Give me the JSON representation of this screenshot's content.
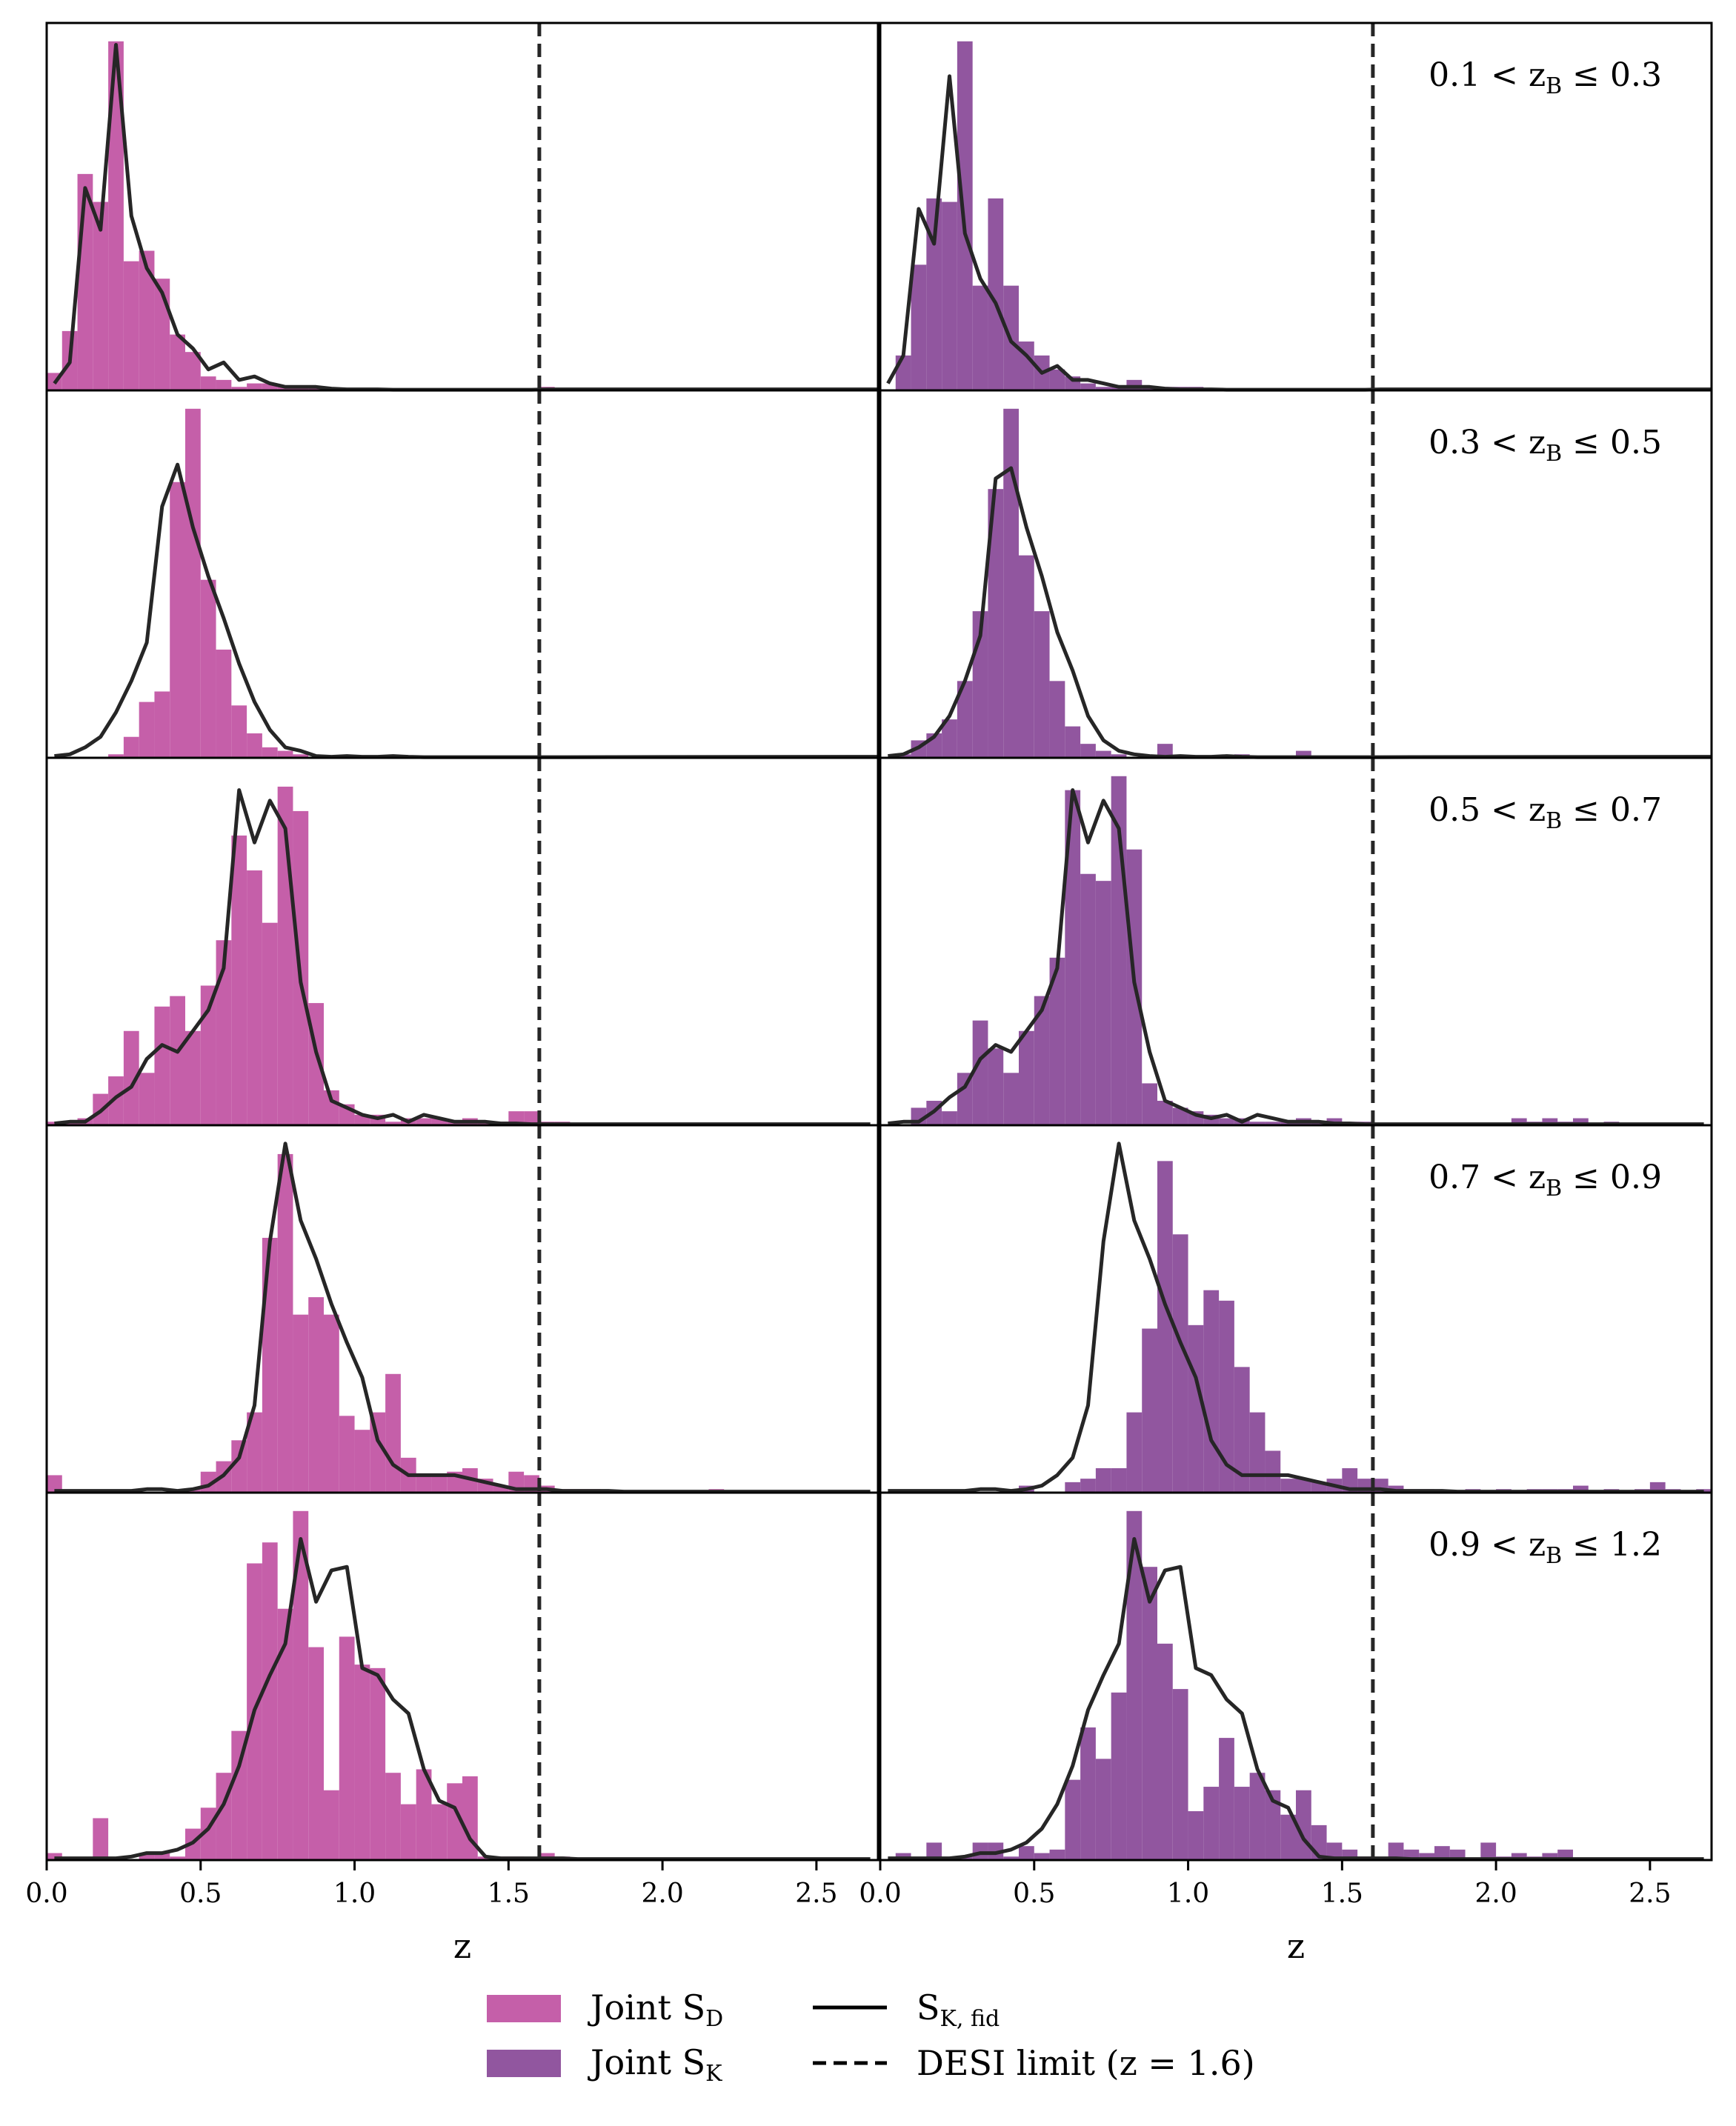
{
  "colors": {
    "joint_sd": "#c55fa9",
    "joint_sk": "#91569f",
    "line": "#262626",
    "desi": "#262626"
  },
  "legend": {
    "joint_sd": "Joint S",
    "joint_sd_sub": "D",
    "joint_sk": "Joint S",
    "joint_sk_sub": "K",
    "sk_fid": "S",
    "sk_fid_sub": "K, fid",
    "desi": "DESI limit (z = 1.6)"
  },
  "chart_data": {
    "type": "histogram",
    "xlabel": "z",
    "xlim": [
      0,
      2.7
    ],
    "xticks": [
      0.0,
      0.5,
      1.0,
      1.5,
      2.0,
      2.5
    ],
    "xtick_labels": [
      "0.0",
      "0.5",
      "1.0",
      "1.5",
      "2.0",
      "2.5"
    ],
    "bin_width": 0.05,
    "desi_limit": 1.6,
    "columns": [
      "Joint S_D",
      "Joint S_K"
    ],
    "rows": [
      {
        "label_a": "0.1 < z",
        "label_sub": "B",
        "label_b": " ≤ 0.3",
        "sd": [
          0.05,
          0.17,
          0.62,
          0.54,
          1.0,
          0.37,
          0.4,
          0.32,
          0.16,
          0.11,
          0.04,
          0.03,
          0.01,
          0.02,
          0.02,
          0.01,
          0.01,
          0.01,
          0,
          0,
          0,
          0,
          0,
          0,
          0,
          0,
          0,
          0,
          0,
          0,
          0,
          0,
          0.01
        ],
        "sk": [
          0.0,
          0.1,
          0.36,
          0.55,
          0.54,
          1.0,
          0.3,
          0.55,
          0.3,
          0.14,
          0.1,
          0.06,
          0.04,
          0.02,
          0.01,
          0.01,
          0.03,
          0.01,
          0.01,
          0.01,
          0.01
        ],
        "line_sd": [
          0.02,
          0.08,
          0.58,
          0.46,
          0.99,
          0.5,
          0.35,
          0.28,
          0.16,
          0.12,
          0.06,
          0.08,
          0.03,
          0.04,
          0.02,
          0.01,
          0.01,
          0.01,
          0.005,
          0.003,
          0.003,
          0.003,
          0.002,
          0.002,
          0.002,
          0.002,
          0.002,
          0.002,
          0.002,
          0.002,
          0.002,
          0.002,
          0.003
        ],
        "line_sk": [
          0.02,
          0.1,
          0.52,
          0.42,
          0.9,
          0.45,
          0.32,
          0.25,
          0.14,
          0.1,
          0.05,
          0.07,
          0.03,
          0.03,
          0.02,
          0.01,
          0.01,
          0.01,
          0.005,
          0.003,
          0.003,
          0.003,
          0.002,
          0.002,
          0.002,
          0.002,
          0.002,
          0.002,
          0.002,
          0.002,
          0.002,
          0.002,
          0.003
        ]
      },
      {
        "label_a": "0.3 < z",
        "label_sub": "B",
        "label_b": " ≤ 0.5",
        "sd": [
          0,
          0,
          0,
          0,
          0.01,
          0.06,
          0.16,
          0.19,
          0.79,
          1.0,
          0.51,
          0.31,
          0.15,
          0.07,
          0.03,
          0.02,
          0.01
        ],
        "sk": [
          0,
          0.01,
          0.05,
          0.07,
          0.11,
          0.22,
          0.42,
          0.77,
          1.0,
          0.58,
          0.42,
          0.22,
          0.09,
          0.04,
          0.02,
          0.01,
          0,
          0,
          0.04,
          0,
          0,
          0,
          0,
          0.01,
          0,
          0,
          0,
          0.02
        ],
        "line_sd": [
          0.005,
          0.01,
          0.03,
          0.06,
          0.13,
          0.22,
          0.33,
          0.72,
          0.84,
          0.66,
          0.52,
          0.4,
          0.27,
          0.16,
          0.08,
          0.03,
          0.02,
          0.005,
          0.003,
          0.005,
          0.003,
          0.003,
          0.005,
          0.003,
          0.002,
          0.002,
          0.002,
          0.002,
          0.002,
          0.002,
          0.002,
          0.002,
          0.002
        ],
        "line_sk": [
          0.005,
          0.01,
          0.03,
          0.06,
          0.12,
          0.22,
          0.35,
          0.8,
          0.83,
          0.66,
          0.52,
          0.36,
          0.25,
          0.12,
          0.05,
          0.02,
          0.01,
          0.005,
          0.003,
          0.005,
          0.003,
          0.003,
          0.005,
          0.003,
          0.002,
          0.002,
          0.002,
          0.002,
          0.002,
          0.002,
          0.002,
          0.002,
          0.002
        ]
      },
      {
        "label_a": "0.5 < z",
        "label_sub": "B",
        "label_b": " ≤ 0.7",
        "sd": [
          0.01,
          0.01,
          0.02,
          0.09,
          0.14,
          0.27,
          0.15,
          0.34,
          0.37,
          0.27,
          0.4,
          0.53,
          0.83,
          0.73,
          0.58,
          0.97,
          0.9,
          0.35,
          0.1,
          0.06,
          0.03,
          0.03,
          0.01,
          0.02,
          0.02,
          0.02,
          0.01,
          0.02,
          0.01,
          0.01,
          0.04,
          0.04,
          0.01,
          0.01
        ],
        "sk": [
          0,
          0,
          0.05,
          0.07,
          0.04,
          0.15,
          0.3,
          0.22,
          0.15,
          0.27,
          0.37,
          0.48,
          0.96,
          0.72,
          0.7,
          1.0,
          0.79,
          0.12,
          0.07,
          0.05,
          0.04,
          0.03,
          0.02,
          0.02,
          0.01,
          0.01,
          0.01,
          0.02,
          0.01,
          0.02,
          0.01,
          0.01,
          0,
          0,
          0,
          0,
          0,
          0,
          0,
          0,
          0,
          0.02,
          0.01,
          0.02,
          0.01,
          0.02,
          0,
          0.01
        ],
        "line_sd": [
          0.005,
          0.01,
          0.01,
          0.04,
          0.08,
          0.11,
          0.19,
          0.23,
          0.21,
          0.27,
          0.33,
          0.45,
          0.96,
          0.81,
          0.93,
          0.85,
          0.41,
          0.21,
          0.07,
          0.05,
          0.03,
          0.02,
          0.03,
          0.01,
          0.03,
          0.02,
          0.01,
          0.01,
          0.01,
          0.005,
          0.005,
          0.003,
          0.003,
          0.003,
          0.003,
          0.003,
          0.003,
          0.003,
          0.003,
          0.003,
          0.003,
          0.003,
          0.003,
          0.003,
          0.003,
          0.003,
          0.003,
          0.003,
          0.003,
          0.003,
          0.003,
          0.003,
          0.003,
          0.003
        ],
        "line_sk": [
          0.005,
          0.01,
          0.01,
          0.04,
          0.08,
          0.11,
          0.19,
          0.23,
          0.21,
          0.27,
          0.33,
          0.45,
          0.96,
          0.81,
          0.93,
          0.85,
          0.41,
          0.21,
          0.07,
          0.05,
          0.03,
          0.02,
          0.03,
          0.01,
          0.03,
          0.02,
          0.01,
          0.01,
          0.01,
          0.005,
          0.005,
          0.003,
          0.003,
          0.003,
          0.003,
          0.003,
          0.003,
          0.003,
          0.003,
          0.003,
          0.003,
          0.003,
          0.003,
          0.003,
          0.003,
          0.003,
          0.003,
          0.003,
          0.003,
          0.003,
          0.003,
          0.003,
          0.003,
          0.003
        ]
      },
      {
        "label_a": "0.7 < z",
        "label_sub": "B",
        "label_b": " ≤ 0.9",
        "sd": [
          0.05,
          0,
          0,
          0,
          0,
          0,
          0,
          0,
          0,
          0.01,
          0.06,
          0.09,
          0.15,
          0.23,
          0.73,
          0.97,
          0.51,
          0.56,
          0.51,
          0.22,
          0.18,
          0.23,
          0.34,
          0.1,
          0.05,
          0.05,
          0.06,
          0.07,
          0.04,
          0.02,
          0.06,
          0.05,
          0.02,
          0.01,
          0.01,
          0.01,
          0,
          0,
          0,
          0,
          0,
          0,
          0,
          0.01,
          0,
          0,
          0,
          0,
          0,
          0,
          0,
          0,
          0,
          0
        ],
        "sk": [
          0,
          0,
          0,
          0,
          0,
          0,
          0,
          0,
          0,
          0.02,
          0,
          0,
          0.03,
          0.04,
          0.07,
          0.07,
          0.23,
          0.47,
          0.95,
          0.74,
          0.48,
          0.58,
          0.55,
          0.36,
          0.23,
          0.12,
          0.04,
          0.04,
          0.03,
          0.04,
          0.07,
          0.04,
          0.04,
          0.02,
          0.01,
          0.01,
          0,
          0,
          0.01,
          0,
          0.01,
          0,
          0.01,
          0.01,
          0.01,
          0.02,
          0,
          0.01,
          0,
          0.01,
          0.03,
          0.01,
          0,
          0.01
        ],
        "line_sd": [
          0.005,
          0.005,
          0.005,
          0.005,
          0.005,
          0.005,
          0.01,
          0.01,
          0.005,
          0.01,
          0.02,
          0.05,
          0.1,
          0.25,
          0.72,
          1.0,
          0.78,
          0.67,
          0.54,
          0.43,
          0.33,
          0.15,
          0.08,
          0.05,
          0.05,
          0.05,
          0.05,
          0.04,
          0.03,
          0.02,
          0.01,
          0.01,
          0.01,
          0.005,
          0.005,
          0.005,
          0.005,
          0.003,
          0.003,
          0.003,
          0.003,
          0.003,
          0.003,
          0.003,
          0.003,
          0.003,
          0.003,
          0.003,
          0.003,
          0.003,
          0.003,
          0.003,
          0.003,
          0.003
        ],
        "line_sk": [
          0.005,
          0.005,
          0.005,
          0.005,
          0.005,
          0.005,
          0.01,
          0.01,
          0.005,
          0.01,
          0.02,
          0.05,
          0.1,
          0.25,
          0.72,
          1.0,
          0.78,
          0.67,
          0.54,
          0.43,
          0.33,
          0.15,
          0.08,
          0.05,
          0.05,
          0.05,
          0.05,
          0.04,
          0.03,
          0.02,
          0.01,
          0.01,
          0.01,
          0.005,
          0.005,
          0.005,
          0.005,
          0.003,
          0.003,
          0.003,
          0.003,
          0.003,
          0.003,
          0.003,
          0.003,
          0.003,
          0.003,
          0.003,
          0.003,
          0.003,
          0.003,
          0.003,
          0.003,
          0.003
        ]
      },
      {
        "label_a": "0.9 < z",
        "label_sub": "B",
        "label_b": " ≤ 1.2",
        "sd": [
          0.02,
          0,
          0,
          0.12,
          0,
          0,
          0.02,
          0.02,
          0.01,
          0.09,
          0.15,
          0.25,
          0.37,
          0.85,
          0.91,
          0.72,
          1.0,
          0.61,
          0.2,
          0.64,
          0.56,
          0.55,
          0.25,
          0.16,
          0.26,
          0.16,
          0.22,
          0.24,
          0.01,
          0.01,
          0.01,
          0,
          0.02,
          0.01,
          0,
          0,
          0,
          0,
          0,
          0,
          0,
          0,
          0,
          0,
          0,
          0,
          0,
          0,
          0,
          0,
          0,
          0,
          0,
          0
        ],
        "sk": [
          0,
          0.02,
          0,
          0.05,
          0,
          0.01,
          0.05,
          0.05,
          0.01,
          0.04,
          0.02,
          0.03,
          0.23,
          0.38,
          0.29,
          0.48,
          1.0,
          0.84,
          0.62,
          0.49,
          0.14,
          0.21,
          0.35,
          0.21,
          0.25,
          0.2,
          0.13,
          0.2,
          0.1,
          0.05,
          0.03,
          0.01,
          0,
          0.05,
          0.03,
          0.02,
          0.04,
          0.03,
          0,
          0.05,
          0.01,
          0.02,
          0.01,
          0.02,
          0.03
        ],
        "line_sd": [
          0.005,
          0.005,
          0.005,
          0.005,
          0.005,
          0.01,
          0.02,
          0.02,
          0.03,
          0.05,
          0.09,
          0.16,
          0.27,
          0.43,
          0.53,
          0.62,
          0.92,
          0.74,
          0.83,
          0.84,
          0.55,
          0.53,
          0.46,
          0.42,
          0.26,
          0.17,
          0.15,
          0.06,
          0.01,
          0.005,
          0.005,
          0.005,
          0.005,
          0.005,
          0.003,
          0.003,
          0.003,
          0.003,
          0.003,
          0.003,
          0.003,
          0.003,
          0.003,
          0.003,
          0.003,
          0.003,
          0.003,
          0.003,
          0.003,
          0.003,
          0.003,
          0.003,
          0.003,
          0.003
        ],
        "line_sk": [
          0.005,
          0.005,
          0.005,
          0.005,
          0.005,
          0.01,
          0.02,
          0.02,
          0.03,
          0.05,
          0.09,
          0.16,
          0.27,
          0.43,
          0.53,
          0.62,
          0.92,
          0.74,
          0.83,
          0.84,
          0.55,
          0.53,
          0.46,
          0.42,
          0.26,
          0.17,
          0.15,
          0.06,
          0.01,
          0.005,
          0.005,
          0.005,
          0.005,
          0.005,
          0.003,
          0.003,
          0.003,
          0.003,
          0.003,
          0.003,
          0.003,
          0.003,
          0.003,
          0.003,
          0.003,
          0.003,
          0.003,
          0.003,
          0.003,
          0.003,
          0.003,
          0.003,
          0.003,
          0.003
        ]
      }
    ]
  }
}
